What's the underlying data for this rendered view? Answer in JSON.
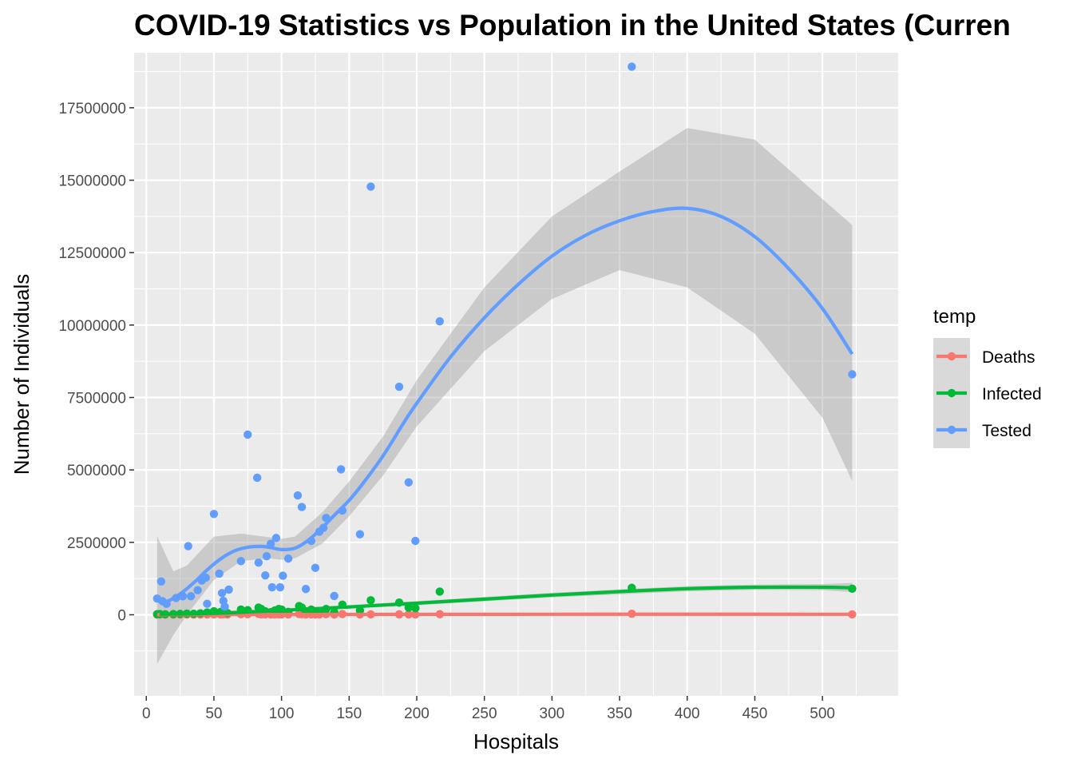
{
  "chart_data": {
    "type": "scatter",
    "title": "COVID-19 Statistics vs Population in the United States (Curren",
    "xlabel": "Hospitals",
    "ylabel": "Number of Individuals",
    "xlim": [
      -9,
      556
    ],
    "ylim": [
      -2800000,
      19400000
    ],
    "x_ticks": [
      0,
      50,
      100,
      150,
      200,
      250,
      300,
      350,
      400,
      450,
      500
    ],
    "x_tick_labels": [
      "0",
      "50",
      "100",
      "150",
      "200",
      "250",
      "300",
      "350",
      "400",
      "450",
      "500"
    ],
    "y_ticks": [
      0,
      2500000,
      5000000,
      7500000,
      10000000,
      12500000,
      15000000,
      17500000
    ],
    "y_tick_labels": [
      "0",
      "2500000",
      "5000000",
      "7500000",
      "10000000",
      "12500000",
      "15000000",
      "17500000"
    ],
    "grid": true,
    "legend": {
      "title": "temp",
      "position": "right"
    },
    "series": [
      {
        "name": "Deaths",
        "color": "#F8766D",
        "points": [
          [
            8,
            5000
          ],
          [
            10,
            8000
          ],
          [
            14,
            3000
          ],
          [
            20,
            5000
          ],
          [
            25,
            4000
          ],
          [
            30,
            8000
          ],
          [
            35,
            5000
          ],
          [
            40,
            6000
          ],
          [
            45,
            10000
          ],
          [
            50,
            15000
          ],
          [
            55,
            10000
          ],
          [
            57,
            20000
          ],
          [
            60,
            8000
          ],
          [
            70,
            20000
          ],
          [
            75,
            18000
          ],
          [
            83,
            30000
          ],
          [
            85,
            15000
          ],
          [
            88,
            12000
          ],
          [
            92,
            10000
          ],
          [
            95,
            10000
          ],
          [
            98,
            15000
          ],
          [
            100,
            14000
          ],
          [
            105,
            12000
          ],
          [
            113,
            25000
          ],
          [
            115,
            20000
          ],
          [
            118,
            12000
          ],
          [
            122,
            15000
          ],
          [
            125,
            10000
          ],
          [
            128,
            10000
          ],
          [
            133,
            20000
          ],
          [
            139,
            8000
          ],
          [
            145,
            25000
          ],
          [
            158,
            12000
          ],
          [
            166,
            15000
          ],
          [
            187,
            14000
          ],
          [
            194,
            16000
          ],
          [
            199,
            12000
          ],
          [
            217,
            20000
          ],
          [
            359,
            35000
          ],
          [
            522,
            15000
          ]
        ],
        "smooth": [
          [
            8,
            3000
          ],
          [
            100,
            10000
          ],
          [
            200,
            15000
          ],
          [
            300,
            18000
          ],
          [
            400,
            20000
          ],
          [
            522,
            18000
          ]
        ]
      },
      {
        "name": "Infected",
        "color": "#00BA38",
        "points": [
          [
            8,
            20000
          ],
          [
            10,
            25000
          ],
          [
            14,
            18000
          ],
          [
            20,
            25000
          ],
          [
            25,
            30000
          ],
          [
            30,
            40000
          ],
          [
            35,
            35000
          ],
          [
            40,
            50000
          ],
          [
            45,
            80000
          ],
          [
            50,
            120000
          ],
          [
            55,
            100000
          ],
          [
            57,
            130000
          ],
          [
            60,
            60000
          ],
          [
            70,
            180000
          ],
          [
            75,
            160000
          ],
          [
            83,
            250000
          ],
          [
            85,
            200000
          ],
          [
            88,
            120000
          ],
          [
            92,
            90000
          ],
          [
            95,
            150000
          ],
          [
            98,
            200000
          ],
          [
            100,
            180000
          ],
          [
            105,
            100000
          ],
          [
            113,
            300000
          ],
          [
            115,
            250000
          ],
          [
            118,
            120000
          ],
          [
            122,
            180000
          ],
          [
            125,
            100000
          ],
          [
            128,
            110000
          ],
          [
            133,
            200000
          ],
          [
            139,
            90000
          ],
          [
            145,
            350000
          ],
          [
            158,
            150000
          ],
          [
            166,
            500000
          ],
          [
            187,
            420000
          ],
          [
            194,
            250000
          ],
          [
            199,
            230000
          ],
          [
            217,
            800000
          ],
          [
            359,
            930000
          ],
          [
            522,
            900000
          ]
        ],
        "smooth": [
          [
            10,
            20000
          ],
          [
            50,
            50000
          ],
          [
            100,
            150000
          ],
          [
            150,
            270000
          ],
          [
            200,
            400000
          ],
          [
            250,
            540000
          ],
          [
            300,
            680000
          ],
          [
            350,
            800000
          ],
          [
            400,
            900000
          ],
          [
            450,
            950000
          ],
          [
            500,
            950000
          ],
          [
            522,
            930000
          ]
        ],
        "band": [
          [
            10,
            -40000,
            80000
          ],
          [
            100,
            100000,
            200000
          ],
          [
            200,
            330000,
            470000
          ],
          [
            300,
            600000,
            760000
          ],
          [
            400,
            810000,
            990000
          ],
          [
            450,
            860000,
            1040000
          ],
          [
            500,
            850000,
            1060000
          ],
          [
            522,
            780000,
            1100000
          ]
        ]
      },
      {
        "name": "Tested",
        "color": "#619CFF",
        "points": [
          [
            8,
            560000
          ],
          [
            11,
            1150000
          ],
          [
            12,
            470000
          ],
          [
            15,
            380000
          ],
          [
            22,
            580000
          ],
          [
            27,
            640000
          ],
          [
            31,
            2370000
          ],
          [
            33,
            640000
          ],
          [
            38,
            850000
          ],
          [
            41,
            1180000
          ],
          [
            44,
            1280000
          ],
          [
            45,
            380000
          ],
          [
            50,
            3480000
          ],
          [
            54,
            1420000
          ],
          [
            56,
            750000
          ],
          [
            57,
            480000
          ],
          [
            58,
            280000
          ],
          [
            61,
            870000
          ],
          [
            70,
            1850000
          ],
          [
            75,
            6220000
          ],
          [
            82,
            4730000
          ],
          [
            83,
            1800000
          ],
          [
            88,
            1360000
          ],
          [
            89,
            2020000
          ],
          [
            92,
            2450000
          ],
          [
            93,
            950000
          ],
          [
            96,
            2650000
          ],
          [
            99,
            950000
          ],
          [
            101,
            1350000
          ],
          [
            105,
            1940000
          ],
          [
            112,
            4120000
          ],
          [
            115,
            3720000
          ],
          [
            118,
            890000
          ],
          [
            122,
            2550000
          ],
          [
            125,
            1620000
          ],
          [
            128,
            2870000
          ],
          [
            131,
            3000000
          ],
          [
            133,
            3340000
          ],
          [
            139,
            650000
          ],
          [
            144,
            5020000
          ],
          [
            145,
            3600000
          ],
          [
            158,
            2780000
          ],
          [
            166,
            14780000
          ],
          [
            187,
            7870000
          ],
          [
            194,
            4570000
          ],
          [
            199,
            2550000
          ],
          [
            217,
            10130000
          ],
          [
            359,
            18920000
          ],
          [
            522,
            8300000
          ]
        ],
        "smooth": [
          [
            8,
            560000
          ],
          [
            15,
            460000
          ],
          [
            25,
            720000
          ],
          [
            35,
            1100000
          ],
          [
            45,
            1550000
          ],
          [
            55,
            1930000
          ],
          [
            65,
            2200000
          ],
          [
            75,
            2330000
          ],
          [
            85,
            2360000
          ],
          [
            92,
            2320000
          ],
          [
            100,
            2250000
          ],
          [
            110,
            2300000
          ],
          [
            120,
            2580000
          ],
          [
            130,
            3000000
          ],
          [
            140,
            3480000
          ],
          [
            150,
            3950000
          ],
          [
            160,
            4520000
          ],
          [
            175,
            5480000
          ],
          [
            190,
            6600000
          ],
          [
            200,
            7300000
          ],
          [
            225,
            8900000
          ],
          [
            250,
            10250000
          ],
          [
            275,
            11400000
          ],
          [
            300,
            12380000
          ],
          [
            325,
            13100000
          ],
          [
            350,
            13600000
          ],
          [
            375,
            13920000
          ],
          [
            400,
            14030000
          ],
          [
            425,
            13750000
          ],
          [
            450,
            13050000
          ],
          [
            475,
            11950000
          ],
          [
            500,
            10570000
          ],
          [
            522,
            9000000
          ]
        ],
        "band": [
          [
            8,
            -1700000,
            2720000
          ],
          [
            20,
            -700000,
            1500000
          ],
          [
            30,
            0,
            1700000
          ],
          [
            50,
            1200000,
            2700000
          ],
          [
            70,
            1850000,
            2800000
          ],
          [
            90,
            1950000,
            2680000
          ],
          [
            100,
            1900000,
            2620000
          ],
          [
            110,
            1950000,
            2700000
          ],
          [
            130,
            2450000,
            3530000
          ],
          [
            150,
            3400000,
            4600000
          ],
          [
            175,
            4800000,
            6150000
          ],
          [
            200,
            6500000,
            8100000
          ],
          [
            250,
            9100000,
            11300000
          ],
          [
            300,
            10900000,
            13750000
          ],
          [
            350,
            11900000,
            15300000
          ],
          [
            400,
            11300000,
            16800000
          ],
          [
            450,
            9700000,
            16400000
          ],
          [
            500,
            6800000,
            14350000
          ],
          [
            522,
            4620000,
            13450000
          ]
        ]
      }
    ]
  }
}
